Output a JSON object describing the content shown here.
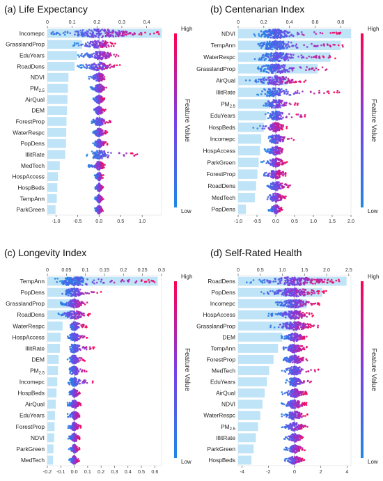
{
  "colors": {
    "low": "#1e88e5",
    "high": "#ff0052",
    "importance_bar": "#bfe3f7"
  },
  "chart_data": [
    {
      "type": "scatter",
      "subtype": "shap-beeswarm-with-importance-bars",
      "title": "(a) Life Expectancy",
      "features": [
        "Incomepc",
        "GrasslandProp",
        "EduYears",
        "RoadDens",
        "NDVI",
        "PM2.5",
        "AirQual",
        "DEM",
        "ForestProp",
        "WaterRespc",
        "PopDens",
        "IllitRate",
        "MedTech",
        "HospAccess",
        "HospBeds",
        "TempAnn",
        "ParkGreen"
      ],
      "importance": [
        0.46,
        0.14,
        0.12,
        0.11,
        0.085,
        0.083,
        0.081,
        0.079,
        0.077,
        0.076,
        0.075,
        0.072,
        0.05,
        0.043,
        0.04,
        0.038,
        0.033
      ],
      "spread": [
        [
          -1.2,
          1.4
        ],
        [
          -0.6,
          0.4
        ],
        [
          -0.5,
          0.55
        ],
        [
          -0.5,
          0.5
        ],
        [
          -0.25,
          0.2
        ],
        [
          -0.2,
          0.2
        ],
        [
          -0.15,
          0.15
        ],
        [
          -0.15,
          0.15
        ],
        [
          -0.2,
          0.3
        ],
        [
          -0.15,
          0.2
        ],
        [
          -0.15,
          0.2
        ],
        [
          -0.3,
          0.9
        ],
        [
          -0.25,
          0.15
        ],
        [
          -0.1,
          0.1
        ],
        [
          -0.1,
          0.1
        ],
        [
          -0.1,
          0.1
        ],
        [
          -0.1,
          0.1
        ]
      ],
      "importance_axis": {
        "range": [
          0,
          0.46
        ],
        "ticks": [
          0,
          0.1,
          0.2,
          0.3,
          0.4
        ]
      },
      "shap_axis": {
        "range": [
          -1.2,
          1.45
        ],
        "ticks": [
          -1.0,
          -0.5,
          0.0,
          0.5,
          1.0
        ]
      },
      "colorbar": {
        "title": "Feature Value",
        "high": "High",
        "low": "Low"
      }
    },
    {
      "type": "scatter",
      "subtype": "shap-beeswarm-with-importance-bars",
      "title": "(b) Centenarian Index",
      "features": [
        "NDVI",
        "TempAnn",
        "WaterRespc",
        "GrasslandProp",
        "AirQual",
        "IllitRate",
        "PM2.5",
        "EduYears",
        "HospBeds",
        "Incomepc",
        "HospAccess",
        "ParkGreen",
        "ForestProp",
        "RoadDens",
        "MedTech",
        "PopDens"
      ],
      "importance": [
        0.88,
        0.8,
        0.72,
        0.62,
        0.38,
        0.3,
        0.25,
        0.22,
        0.2,
        0.18,
        0.17,
        0.16,
        0.15,
        0.14,
        0.13,
        0.06
      ],
      "spread": [
        [
          -0.6,
          1.8
        ],
        [
          -0.5,
          1.8
        ],
        [
          -0.6,
          1.6
        ],
        [
          -0.6,
          1.4
        ],
        [
          -0.8,
          0.8
        ],
        [
          -0.5,
          1.7
        ],
        [
          -0.4,
          0.6
        ],
        [
          -0.3,
          0.8
        ],
        [
          -0.6,
          0.3
        ],
        [
          -0.3,
          0.5
        ],
        [
          -0.3,
          0.3
        ],
        [
          -0.4,
          0.3
        ],
        [
          -0.5,
          0.3
        ],
        [
          -0.3,
          0.4
        ],
        [
          -0.3,
          0.3
        ],
        [
          -0.2,
          0.2
        ]
      ],
      "importance_axis": {
        "range": [
          0,
          0.88
        ],
        "ticks": [
          0,
          0.2,
          0.4,
          0.6,
          0.8
        ]
      },
      "shap_axis": {
        "range": [
          -1.0,
          2.0
        ],
        "ticks": [
          -1.0,
          -0.5,
          0.0,
          0.5,
          1.0,
          1.5,
          2.0
        ]
      },
      "colorbar": {
        "title": "Feature Value",
        "high": "High",
        "low": "Low"
      }
    },
    {
      "type": "scatter",
      "subtype": "shap-beeswarm-with-importance-bars",
      "title": "(c) Longevity Index",
      "features": [
        "TempAnn",
        "PopDens",
        "GrasslandProp",
        "RoadDens",
        "WaterRespc",
        "HospAccess",
        "IllitRate",
        "DEM",
        "PM2.5",
        "Incomepc",
        "HospBeds",
        "AirQual",
        "EduYears",
        "ForestProp",
        "NDVI",
        "ParkGreen",
        "MedTech"
      ],
      "importance": [
        0.29,
        0.075,
        0.07,
        0.06,
        0.04,
        0.035,
        0.033,
        0.03,
        0.028,
        0.026,
        0.024,
        0.022,
        0.02,
        0.019,
        0.018,
        0.016,
        0.015
      ],
      "spread": [
        [
          -0.15,
          0.6
        ],
        [
          -0.1,
          0.2
        ],
        [
          -0.1,
          0.1
        ],
        [
          -0.12,
          0.12
        ],
        [
          -0.05,
          0.1
        ],
        [
          -0.05,
          0.1
        ],
        [
          -0.05,
          0.15
        ],
        [
          -0.05,
          0.08
        ],
        [
          -0.05,
          0.1
        ],
        [
          -0.05,
          0.15
        ],
        [
          -0.05,
          0.05
        ],
        [
          -0.05,
          0.05
        ],
        [
          -0.05,
          0.05
        ],
        [
          -0.05,
          0.05
        ],
        [
          -0.05,
          0.05
        ],
        [
          -0.04,
          0.04
        ],
        [
          -0.04,
          0.04
        ]
      ],
      "importance_axis": {
        "range": [
          0,
          0.3
        ],
        "ticks": [
          0,
          0.05,
          0.1,
          0.15,
          0.2,
          0.25,
          0.3
        ]
      },
      "shap_axis": {
        "range": [
          -0.2,
          0.65
        ],
        "ticks": [
          -0.2,
          -0.1,
          0.0,
          0.1,
          0.2,
          0.3,
          0.4,
          0.5,
          0.6
        ]
      },
      "colorbar": {
        "title": "Feature Value",
        "high": "High",
        "low": "Low"
      }
    },
    {
      "type": "scatter",
      "subtype": "shap-beeswarm-with-importance-bars",
      "title": "(d) Self-Rated Health",
      "features": [
        "RoadDens",
        "PopDens",
        "Incomepc",
        "HospAccess",
        "GrasslandProp",
        "DEM",
        "TempAnn",
        "ForestProp",
        "MedTech",
        "EduYears",
        "AirQual",
        "NDVI",
        "WaterRespc",
        "PM2.5",
        "IllitRate",
        "ParkGreen",
        "HospBeds"
      ],
      "importance": [
        2.45,
        1.9,
        1.55,
        1.4,
        1.35,
        1.0,
        0.9,
        0.8,
        0.7,
        0.65,
        0.6,
        0.55,
        0.5,
        0.45,
        0.4,
        0.35,
        0.3
      ],
      "spread": [
        [
          -3.8,
          3.5
        ],
        [
          -3.0,
          2.5
        ],
        [
          -1.5,
          2.0
        ],
        [
          -2.0,
          1.5
        ],
        [
          -2.0,
          1.8
        ],
        [
          -1.0,
          1.0
        ],
        [
          -1.2,
          1.0
        ],
        [
          -1.0,
          1.0
        ],
        [
          -1.0,
          2.0
        ],
        [
          -0.8,
          1.5
        ],
        [
          -1.0,
          1.0
        ],
        [
          -1.0,
          1.0
        ],
        [
          -1.0,
          1.0
        ],
        [
          -1.0,
          1.0
        ],
        [
          -0.8,
          0.8
        ],
        [
          -0.8,
          0.8
        ],
        [
          -0.8,
          0.8
        ]
      ],
      "importance_axis": {
        "range": [
          0,
          2.55
        ],
        "ticks": [
          0,
          0.5,
          1.0,
          1.5,
          2.0,
          2.5
        ]
      },
      "shap_axis": {
        "range": [
          -4.3,
          4.3
        ],
        "ticks": [
          -4,
          -2,
          0,
          2,
          4
        ]
      },
      "colorbar": {
        "title": "Feature Value",
        "high": "High",
        "low": "Low"
      }
    }
  ]
}
